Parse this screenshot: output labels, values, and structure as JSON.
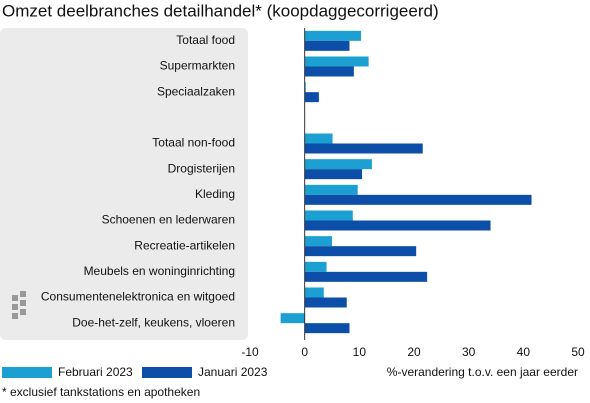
{
  "chart_data": {
    "type": "barh",
    "title": "Omzet deelbranches detailhandel* (koopdaggecorrigeerd)",
    "categories": [
      "Totaal food",
      "Supermarkten",
      "Speciaalzaken",
      null,
      "Totaal non-food",
      "Drogisterijen",
      "Kleding",
      "Schoenen en lederwaren",
      "Recreatie-artikelen",
      "Meubels en woninginrichting",
      "Consumentenelektronica en witgoed",
      "Doe-het-zelf, keukens, vloeren"
    ],
    "series": [
      {
        "name": "Februari 2023",
        "color": "#1ba0d1",
        "values": [
          10.3,
          11.7,
          0.2,
          null,
          5.1,
          12.3,
          9.7,
          8.8,
          5.0,
          4.0,
          3.5,
          -4.4
        ]
      },
      {
        "name": "Januari 2023",
        "color": "#0c4ea8",
        "values": [
          8.2,
          9.0,
          2.6,
          null,
          21.6,
          10.5,
          41.5,
          34.0,
          20.4,
          22.4,
          7.7,
          8.2
        ]
      }
    ],
    "xlim": [
      -10,
      50
    ],
    "xticks": [
      -10,
      0,
      10,
      20,
      30,
      40,
      50
    ],
    "xlabel": "%-verandering t.o.v. een jaar eerder",
    "legend": "bottom-left",
    "note": "* exclusief tankstations en apotheken"
  }
}
